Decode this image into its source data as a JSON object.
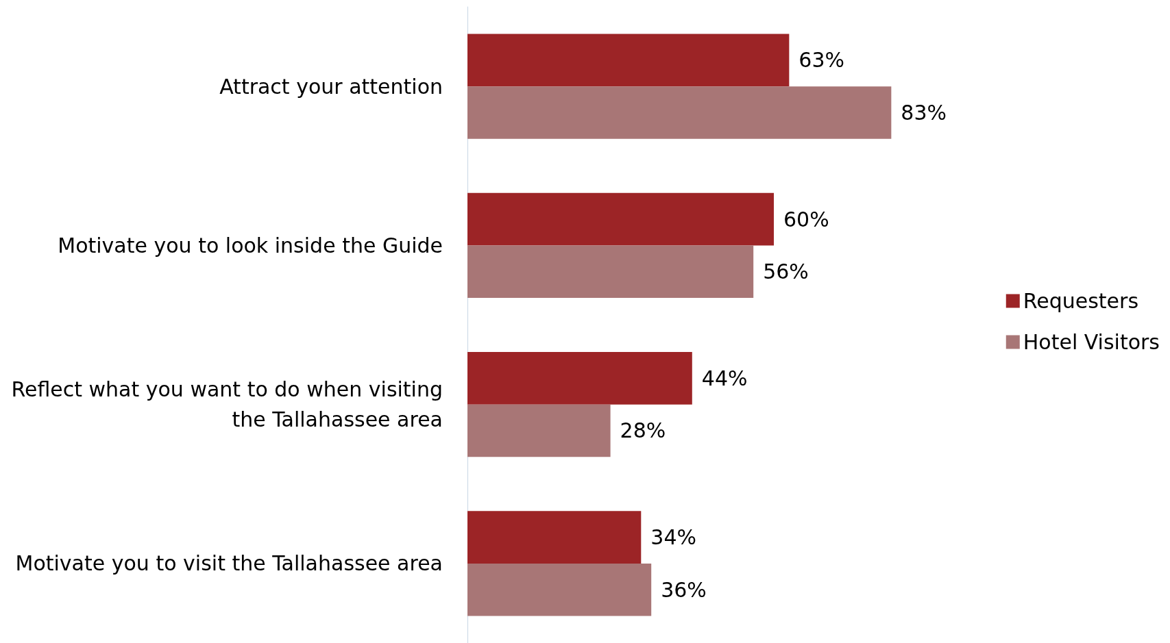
{
  "chart_data": {
    "type": "bar",
    "orientation": "horizontal",
    "categories": [
      "Attract your attention",
      "Motivate you to look inside the Guide",
      "Reflect what you want to do when visiting the Tallahassee area",
      "Motivate you to visit the Tallahassee area"
    ],
    "series": [
      {
        "name": "Requesters",
        "color": "#9c2426",
        "values": [
          63,
          60,
          44,
          34
        ],
        "value_labels": [
          "63%",
          "60%",
          "44%",
          "34%"
        ]
      },
      {
        "name": "Hotel Visitors",
        "color": "#a87676",
        "values": [
          83,
          56,
          28,
          36
        ],
        "value_labels": [
          "83%",
          "56%",
          "28%",
          "36%"
        ]
      }
    ],
    "legend": "right"
  }
}
